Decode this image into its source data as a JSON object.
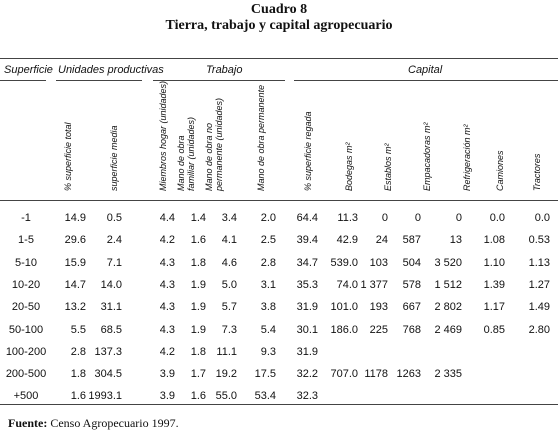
{
  "title": "Cuadro 8",
  "subtitle": "Tierra, trabajo y capital agropecuario",
  "groups": {
    "superficie": "Superficie",
    "unidades": "Unidades productivas",
    "trabajo": "Trabajo",
    "capital": "Capital"
  },
  "columns": [
    "% superficie total",
    "superficie media",
    "Miembros hogar (unidades)",
    "Mano de obra familiar (unidades)",
    "Mano de obra no permanente (unidades)",
    "Mano de obra permanente",
    "% superficie regada",
    "Bodegas m²",
    "Establos m²",
    "Empacadoras m²",
    "Refrigeración m²",
    "Camiones",
    "Tractores"
  ],
  "rows": [
    {
      "label": "-1",
      "values": [
        "14.9",
        "0.5",
        "4.4",
        "1.4",
        "3.4",
        "2.0",
        "64.4",
        "11.3",
        "0",
        "0",
        "0",
        "0.0",
        "0.0"
      ]
    },
    {
      "label": "1-5",
      "values": [
        "29.6",
        "2.4",
        "4.2",
        "1.6",
        "4.1",
        "2.5",
        "39.4",
        "42.9",
        "24",
        "587",
        "13",
        "1.08",
        "0.53"
      ]
    },
    {
      "label": "5-10",
      "values": [
        "15.9",
        "7.1",
        "4.3",
        "1.8",
        "4.6",
        "2.8",
        "34.7",
        "539.0",
        "103",
        "504",
        "3 520",
        "1.10",
        "1.13"
      ]
    },
    {
      "label": "10-20",
      "values": [
        "14.7",
        "14.0",
        "4.3",
        "1.9",
        "5.0",
        "3.1",
        "35.3",
        "74.0",
        "1 377",
        "578",
        "1 512",
        "1.39",
        "1.27"
      ]
    },
    {
      "label": "20-50",
      "values": [
        "13.2",
        "31.1",
        "4.3",
        "1.9",
        "5.7",
        "3.8",
        "31.9",
        "101.0",
        "193",
        "667",
        "2 802",
        "1.17",
        "1.49"
      ]
    },
    {
      "label": "50-100",
      "values": [
        "5.5",
        "68.5",
        "4.3",
        "1.9",
        "7.3",
        "5.4",
        "30.1",
        "186.0",
        "225",
        "768",
        "2 469",
        "0.85",
        "2.80"
      ]
    },
    {
      "label": "100-200",
      "values": [
        "2.8",
        "137.3",
        "4.2",
        "1.8",
        "11.1",
        "9.3",
        "31.9",
        "",
        "",
        "",
        "",
        "",
        ""
      ]
    },
    {
      "label": "200-500",
      "values": [
        "1.8",
        "304.5",
        "3.9",
        "1.7",
        "19.2",
        "17.5",
        "32.2",
        "707.0",
        "1178",
        "1263",
        "2 335",
        "",
        ""
      ]
    },
    {
      "label": "+500",
      "values": [
        "1.6",
        "1993.1",
        "3.9",
        "1.6",
        "55.0",
        "53.4",
        "32.3",
        "",
        "",
        "",
        "",
        "",
        ""
      ]
    }
  ],
  "footer": {
    "label": "Fuente:",
    "text": "Censo Agropecuario 1997."
  }
}
